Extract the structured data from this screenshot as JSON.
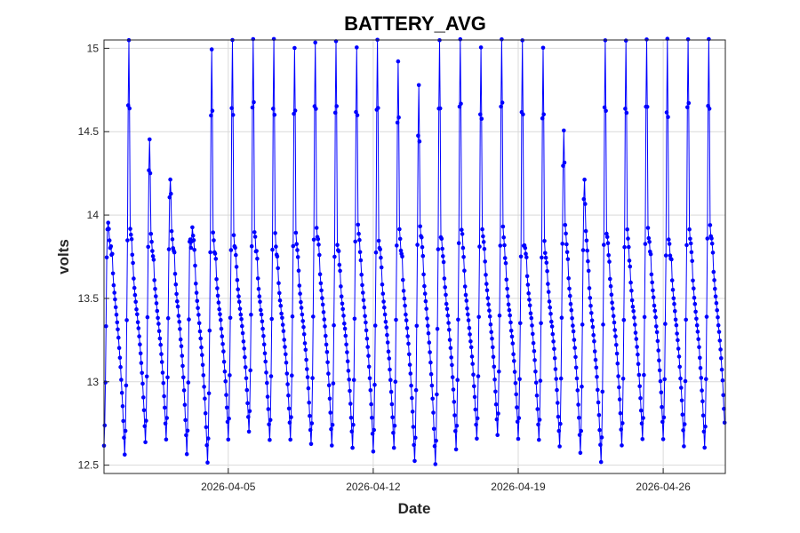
{
  "chart_data": {
    "type": "line",
    "title": "BATTERY_AVG",
    "xlabel": "Date",
    "ylabel": "volts",
    "grid": true,
    "x_start": "2026-03-30",
    "x_end": "2026-04-29",
    "xlim": [
      "2026-03-30",
      "2026-04-29"
    ],
    "ylim": [
      12.45,
      15.05
    ],
    "x_ticks": [
      "2026-04-05",
      "2026-04-12",
      "2026-04-19",
      "2026-04-26"
    ],
    "y_ticks": [
      12.5,
      13,
      13.5,
      14,
      14.5,
      15
    ],
    "y_tick_labels": [
      "12.5",
      "13",
      "13.5",
      "14",
      "14.5",
      "15"
    ],
    "series": [
      {
        "color": "#0000ff",
        "marker": "dot",
        "daily_cycles": [
          {
            "date": "2026-03-30",
            "min": 12.62,
            "peak": 13.95
          },
          {
            "date": "2026-03-31",
            "min": 12.56,
            "peak": 15.05
          },
          {
            "date": "2026-04-01",
            "min": 12.64,
            "peak": 14.46
          },
          {
            "date": "2026-04-02",
            "min": 12.66,
            "peak": 14.22
          },
          {
            "date": "2026-04-03",
            "min": 12.57,
            "peak": 13.8
          },
          {
            "date": "2026-04-04",
            "min": 12.52,
            "peak": 15.0
          },
          {
            "date": "2026-04-05",
            "min": 12.66,
            "peak": 15.05
          },
          {
            "date": "2026-04-06",
            "min": 12.7,
            "peak": 15.05
          },
          {
            "date": "2026-04-07",
            "min": 12.65,
            "peak": 15.05
          },
          {
            "date": "2026-04-08",
            "min": 12.66,
            "peak": 15.0
          },
          {
            "date": "2026-04-09",
            "min": 12.62,
            "peak": 15.04
          },
          {
            "date": "2026-04-10",
            "min": 12.62,
            "peak": 15.05
          },
          {
            "date": "2026-04-11",
            "min": 12.6,
            "peak": 15.0
          },
          {
            "date": "2026-04-12",
            "min": 12.58,
            "peak": 15.05
          },
          {
            "date": "2026-04-13",
            "min": 12.6,
            "peak": 14.92
          },
          {
            "date": "2026-04-14",
            "min": 12.52,
            "peak": 14.78
          },
          {
            "date": "2026-04-15",
            "min": 12.5,
            "peak": 15.05
          },
          {
            "date": "2026-04-16",
            "min": 12.6,
            "peak": 15.05
          },
          {
            "date": "2026-04-17",
            "min": 12.66,
            "peak": 15.0
          },
          {
            "date": "2026-04-18",
            "min": 12.68,
            "peak": 15.05
          },
          {
            "date": "2026-04-19",
            "min": 12.66,
            "peak": 15.05
          },
          {
            "date": "2026-04-20",
            "min": 12.65,
            "peak": 15.0
          },
          {
            "date": "2026-04-21",
            "min": 12.61,
            "peak": 14.5
          },
          {
            "date": "2026-04-22",
            "min": 12.58,
            "peak": 14.22
          },
          {
            "date": "2026-04-23",
            "min": 12.52,
            "peak": 15.05
          },
          {
            "date": "2026-04-24",
            "min": 12.62,
            "peak": 15.05
          },
          {
            "date": "2026-04-25",
            "min": 12.65,
            "peak": 15.05
          },
          {
            "date": "2026-04-26",
            "min": 12.66,
            "peak": 15.05
          },
          {
            "date": "2026-04-27",
            "min": 12.61,
            "peak": 15.05
          },
          {
            "date": "2026-04-28",
            "min": 12.6,
            "peak": 15.05
          }
        ]
      }
    ]
  }
}
